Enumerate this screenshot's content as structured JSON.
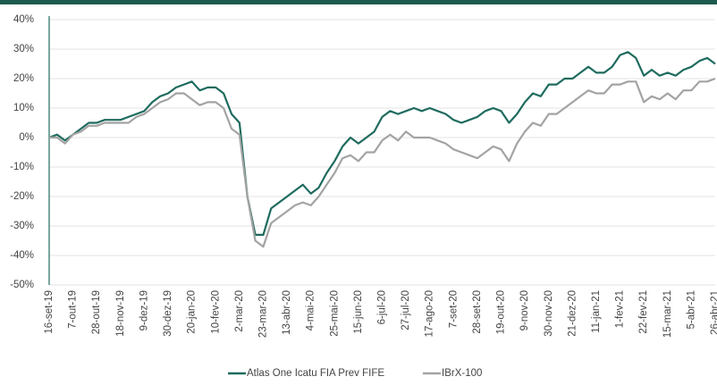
{
  "chart_data": {
    "type": "line",
    "categories": [
      "16-set-19",
      null,
      null,
      "7-out-19",
      null,
      null,
      "28-out-19",
      null,
      null,
      "18-nov-19",
      null,
      null,
      "9-dez-19",
      null,
      null,
      "30-dez-19",
      null,
      null,
      "20-jan-20",
      null,
      null,
      "10-fev-20",
      null,
      null,
      "2-mar-20",
      null,
      null,
      "23-mar-20",
      null,
      null,
      "13-abr-20",
      null,
      null,
      "4-mai-20",
      null,
      null,
      "25-mai-20",
      null,
      null,
      "15-jun-20",
      null,
      null,
      "6-jul-20",
      null,
      null,
      "27-jul-20",
      null,
      null,
      "17-ago-20",
      null,
      null,
      "7-set-20",
      null,
      null,
      "28-set-20",
      null,
      null,
      "19-out-20",
      null,
      null,
      "9-nov-20",
      null,
      null,
      "30-nov-20",
      null,
      null,
      "21-dez-20",
      null,
      null,
      "11-jan-21",
      null,
      null,
      "1-fev-21",
      null,
      null,
      "22-fev-21",
      null,
      null,
      "15-mar-21",
      null,
      null,
      "5-abr-21",
      null,
      null,
      "26-abr-21"
    ],
    "series": [
      {
        "name": "Atlas One Icatu FIA Prev FIFE",
        "color": "#1e6b5e",
        "values": [
          0,
          1,
          -1,
          1,
          3,
          5,
          5,
          6,
          6,
          6,
          7,
          8,
          9,
          12,
          14,
          15,
          17,
          18,
          19,
          16,
          17,
          17,
          15,
          8,
          5,
          -20,
          -33,
          -33,
          -24,
          -22,
          -20,
          -18,
          -16,
          -19,
          -17,
          -12,
          -8,
          -3,
          0,
          -2,
          0,
          2,
          7,
          9,
          8,
          9,
          10,
          9,
          10,
          9,
          8,
          6,
          5,
          6,
          7,
          9,
          10,
          9,
          5,
          8,
          12,
          15,
          14,
          18,
          18,
          20,
          20,
          22,
          24,
          22,
          22,
          24,
          28,
          29,
          27,
          21,
          23,
          21,
          22,
          21,
          23,
          24,
          26,
          27,
          25
        ]
      },
      {
        "name": "IBrX-100",
        "color": "#a3a3a3",
        "values": [
          0,
          0,
          -2,
          1,
          2,
          4,
          4,
          5,
          5,
          5,
          5,
          7,
          8,
          10,
          12,
          13,
          15,
          15,
          13,
          11,
          12,
          12,
          10,
          3,
          1,
          -20,
          -35,
          -37,
          -29,
          -27,
          -25,
          -23,
          -22,
          -23,
          -20,
          -16,
          -12,
          -7,
          -6,
          -8,
          -5,
          -5,
          -1,
          1,
          -1,
          2,
          0,
          0,
          0,
          -1,
          -2,
          -4,
          -5,
          -6,
          -7,
          -5,
          -3,
          -4,
          -8,
          -2,
          2,
          5,
          4,
          8,
          8,
          10,
          12,
          14,
          16,
          15,
          15,
          18,
          18,
          19,
          19,
          12,
          14,
          13,
          15,
          13,
          16,
          16,
          19,
          19,
          20
        ]
      }
    ],
    "ylim": [
      -50,
      40
    ],
    "yticks": [
      {
        "value": -50,
        "label": "-50%"
      },
      {
        "value": -40,
        "label": "-40%"
      },
      {
        "value": -30,
        "label": "-30%"
      },
      {
        "value": -20,
        "label": "-20%"
      },
      {
        "value": -10,
        "label": "-10%"
      },
      {
        "value": 0,
        "label": "0%"
      },
      {
        "value": 10,
        "label": "10%"
      },
      {
        "value": 20,
        "label": "20%"
      },
      {
        "value": 30,
        "label": "30%"
      },
      {
        "value": 40,
        "label": "40%"
      }
    ],
    "grid": true
  }
}
